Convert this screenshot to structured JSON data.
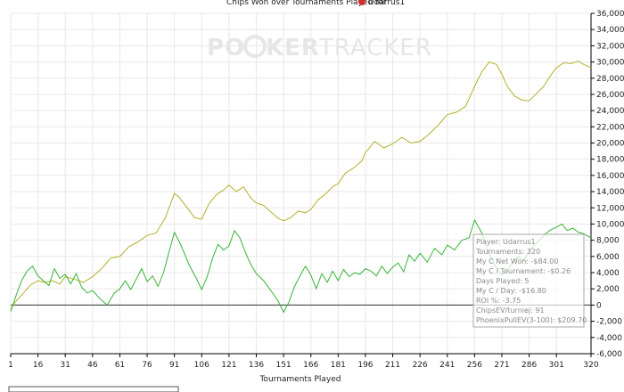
{
  "title": "Chips Won over Tournaments Played for",
  "player_name": "Udarrus1",
  "watermark": {
    "part1": "PO",
    "part2": "KER",
    "part3": "TRACKER"
  },
  "colors": {
    "gold_series": "#b5b02a",
    "green_series": "#37b337",
    "axis": "#000000",
    "grid": "#e8e8e8",
    "tooltip_border": "#aaaaaa",
    "tooltip_text": "#8a8a8a",
    "player_icon": "#d32f2f"
  },
  "tooltip": {
    "lines": [
      "Player: Udarrus1",
      "Tournaments: 320",
      "My C Net Won: -$84.00",
      "My C / Tournament: -$0.26",
      "Days Played: 5",
      "My C / Day: -$16.80",
      "ROI %: -3.75",
      "ChipsEV/turniej: 91",
      "PhoenixPullEV(3-100): $209.70"
    ]
  },
  "chart_data": {
    "type": "line",
    "title": "Chips Won over Tournaments Played for Udarrus1",
    "xlabel": "Tournaments Played",
    "ylabel": "",
    "xlim": [
      1,
      320
    ],
    "ylim": [
      -6000,
      36000
    ],
    "x_ticks": [
      1,
      16,
      31,
      46,
      61,
      76,
      91,
      106,
      121,
      136,
      151,
      166,
      181,
      196,
      211,
      226,
      241,
      256,
      271,
      286,
      301,
      320
    ],
    "y_ticks": [
      -6000,
      -4000,
      -2000,
      0,
      2000,
      4000,
      6000,
      8000,
      10000,
      12000,
      14000,
      16000,
      18000,
      20000,
      22000,
      24000,
      26000,
      28000,
      30000,
      32000,
      34000,
      36000
    ],
    "y_tick_labels": [
      "-6,000",
      "-4,000",
      "-2,000",
      "0",
      "2,000",
      "4,000",
      "6,000",
      "8,000",
      "10,000",
      "12,000",
      "14,000",
      "16,000",
      "18,000",
      "20,000",
      "22,000",
      "24,000",
      "26,000",
      "28,000",
      "30,000",
      "32,000",
      "34,000",
      "36,000"
    ],
    "grid": true,
    "y_axis_position": "right",
    "series": [
      {
        "color": "gold",
        "x": [
          1,
          4,
          8,
          12,
          16,
          20,
          24,
          28,
          31,
          36,
          41,
          46,
          51,
          56,
          61,
          66,
          71,
          76,
          81,
          86,
          91,
          94,
          98,
          102,
          106,
          110,
          114,
          118,
          121,
          125,
          129,
          133,
          136,
          140,
          144,
          148,
          151,
          155,
          159,
          163,
          166,
          170,
          174,
          178,
          181,
          185,
          190,
          194,
          196,
          201,
          206,
          211,
          216,
          221,
          226,
          231,
          236,
          241,
          246,
          251,
          256,
          260,
          264,
          268,
          271,
          274,
          278,
          282,
          286,
          290,
          294,
          298,
          301,
          305,
          309,
          313,
          316,
          320
        ],
        "y": [
          -500,
          500,
          1500,
          2500,
          3000,
          2800,
          3000,
          2600,
          3500,
          3200,
          2800,
          3500,
          4500,
          5800,
          6000,
          7200,
          7800,
          8600,
          8900,
          10800,
          13800,
          13200,
          12000,
          10800,
          10600,
          12500,
          13600,
          14200,
          14800,
          14000,
          14600,
          13200,
          12600,
          12300,
          11500,
          10700,
          10400,
          10800,
          11600,
          11400,
          11800,
          13000,
          13700,
          14600,
          15000,
          16300,
          17000,
          17800,
          18800,
          20200,
          19400,
          19900,
          20700,
          20000,
          20200,
          21100,
          22200,
          23500,
          23800,
          24500,
          27000,
          28800,
          30000,
          29700,
          28500,
          27000,
          25800,
          25300,
          25200,
          26100,
          27000,
          28400,
          29300,
          29900,
          29800,
          30100,
          29700,
          29300
        ]
      },
      {
        "color": "green",
        "x": [
          1,
          4,
          7,
          10,
          13,
          16,
          19,
          22,
          25,
          28,
          31,
          34,
          37,
          40,
          43,
          46,
          50,
          54,
          58,
          61,
          64,
          67,
          70,
          73,
          76,
          79,
          82,
          85,
          88,
          91,
          95,
          99,
          103,
          106,
          109,
          112,
          115,
          118,
          121,
          124,
          127,
          130,
          133,
          136,
          140,
          144,
          148,
          151,
          154,
          157,
          160,
          163,
          166,
          169,
          172,
          175,
          178,
          181,
          184,
          187,
          190,
          193,
          196,
          199,
          202,
          205,
          208,
          211,
          214,
          217,
          220,
          223,
          226,
          230,
          234,
          238,
          241,
          245,
          249,
          253,
          256,
          260,
          264,
          268,
          271,
          274,
          277,
          280,
          283,
          286,
          289,
          292,
          295,
          298,
          301,
          304,
          307,
          310,
          313,
          316,
          320
        ],
        "y": [
          -800,
          1200,
          3000,
          4200,
          4800,
          3600,
          3000,
          2400,
          4500,
          3300,
          3800,
          2600,
          3900,
          2200,
          1500,
          1800,
          800,
          0,
          1500,
          2000,
          3000,
          1900,
          3200,
          4500,
          2900,
          3600,
          2300,
          4000,
          6500,
          9000,
          7200,
          5000,
          3300,
          1900,
          3500,
          5800,
          7500,
          6800,
          7300,
          9200,
          8300,
          6500,
          5000,
          3900,
          3000,
          1800,
          500,
          -900,
          400,
          2300,
          3600,
          4800,
          3700,
          2000,
          3900,
          2800,
          4200,
          3000,
          4400,
          3500,
          4000,
          3800,
          4500,
          4200,
          3600,
          4800,
          3900,
          4700,
          5200,
          4100,
          6200,
          5400,
          6400,
          5300,
          7000,
          6200,
          7400,
          6800,
          8000,
          8300,
          10500,
          8900,
          6300,
          4600,
          3700,
          4300,
          5200,
          6000,
          5500,
          6700,
          7400,
          8100,
          8800,
          9300,
          9600,
          10000,
          9200,
          9500,
          9000,
          8800,
          8300
        ]
      }
    ]
  }
}
